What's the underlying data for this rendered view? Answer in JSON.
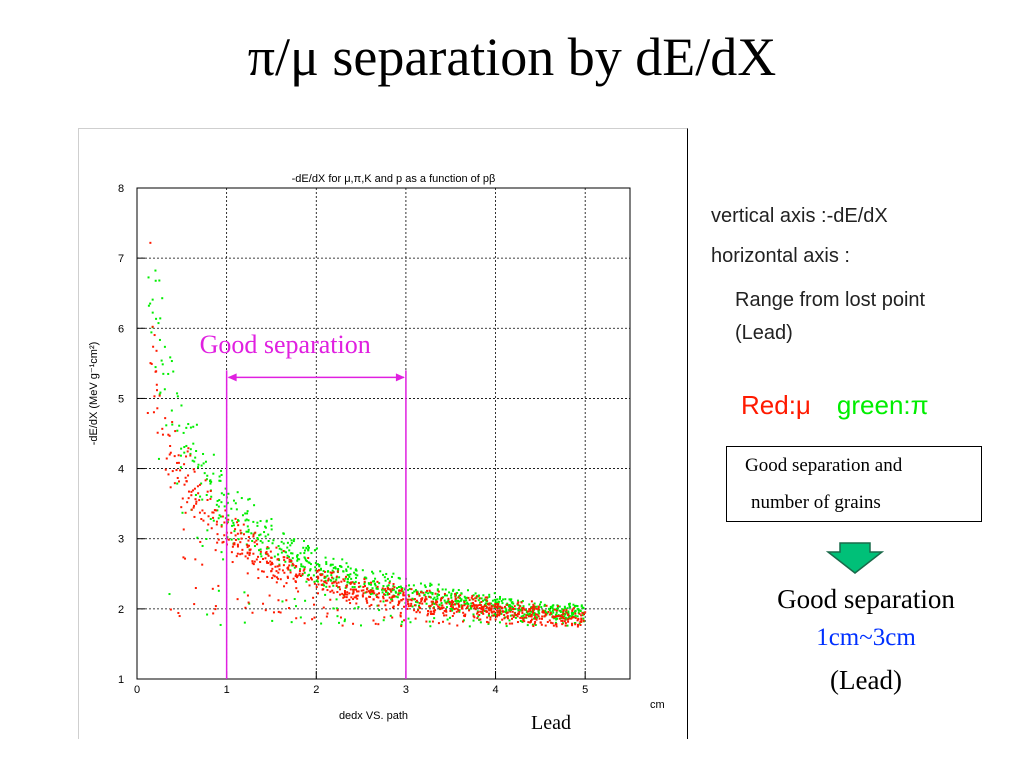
{
  "slide": {
    "title": "π/μ separation by dE/dX",
    "lead_caption": "Lead",
    "notes": {
      "vertical": "vertical axis :-dE/dX",
      "horizontal": "horizontal axis :",
      "range_line1": "Range from lost point",
      "range_line2": "(Lead)"
    },
    "legend": {
      "red": "Red:μ",
      "green": "green:π"
    },
    "box": {
      "line1": "Good separation and",
      "line2": "number of grains"
    },
    "conclusion": {
      "line1": "Good separation",
      "line2": "1cm~3cm",
      "line3": "(Lead)"
    },
    "colors": {
      "mu": "#ff1a00",
      "pi": "#00ee00",
      "annotation": "#e020e0",
      "range_blue": "#0030ff",
      "arrow_fill": "#00c078",
      "arrow_stroke": "#1a6a4a"
    },
    "icons": {
      "arrow": "down-arrow-icon"
    }
  },
  "chart_data": {
    "type": "scatter",
    "title": "-dE/dX for μ,π,K and p as a function of pβ",
    "xlabel": "dedx VS. path",
    "x_unit": "cm",
    "ylabel": "-dE/dX (MeV g⁻¹cm²)",
    "xlim": [
      0,
      5.5
    ],
    "ylim": [
      1,
      8
    ],
    "x_ticks": [
      0,
      1,
      2,
      3,
      4,
      5
    ],
    "y_ticks": [
      1,
      2,
      3,
      4,
      5,
      6,
      7,
      8
    ],
    "grid": true,
    "series": [
      {
        "name": "μ",
        "color": "#ff1a00",
        "curve": {
          "x": [
            0.1,
            0.2,
            0.3,
            0.5,
            0.75,
            1.0,
            1.5,
            2.0,
            2.5,
            3.0,
            3.5,
            4.0,
            4.5,
            5.0
          ],
          "y": [
            6.9,
            5.3,
            4.6,
            3.9,
            3.4,
            3.05,
            2.65,
            2.42,
            2.27,
            2.15,
            2.06,
            1.98,
            1.92,
            1.87
          ]
        }
      },
      {
        "name": "π",
        "color": "#00ee00",
        "curve": {
          "x": [
            0.1,
            0.2,
            0.3,
            0.5,
            0.75,
            1.0,
            1.5,
            2.0,
            2.5,
            3.0,
            3.5,
            4.0,
            4.5,
            5.0
          ],
          "y": [
            7.0,
            6.2,
            5.4,
            4.55,
            3.9,
            3.45,
            2.95,
            2.62,
            2.4,
            2.25,
            2.13,
            2.05,
            1.98,
            1.92
          ]
        }
      }
    ],
    "annotation": {
      "text": "Good separation",
      "x_from": 1,
      "x_to": 3
    }
  }
}
